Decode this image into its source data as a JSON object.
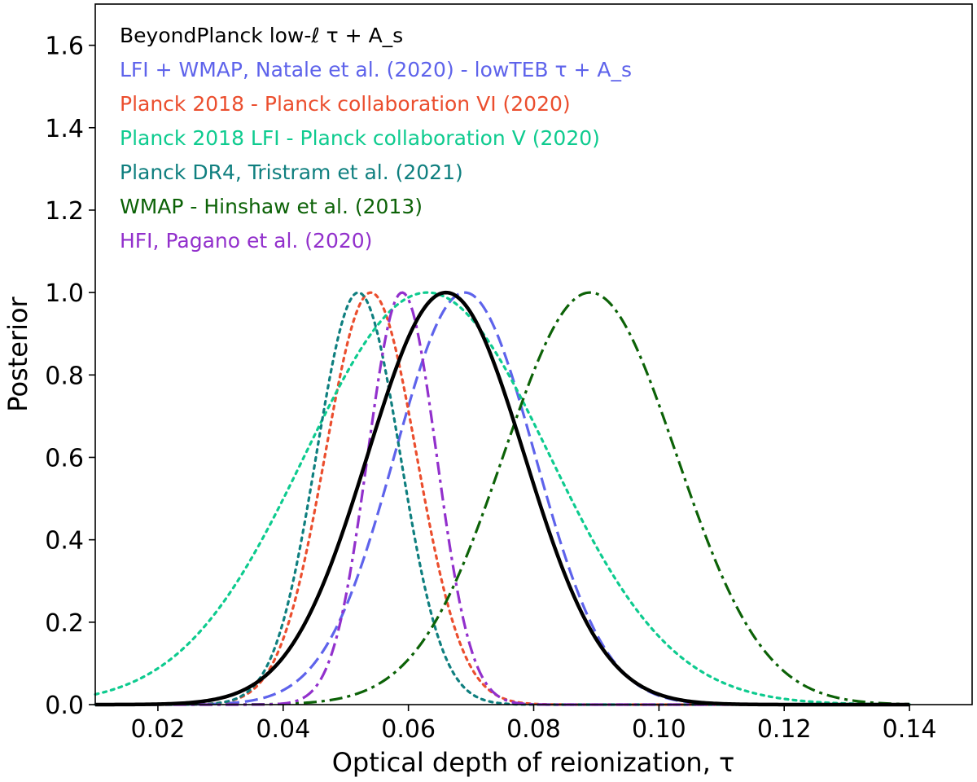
{
  "chart_data": {
    "type": "line",
    "xlabel": "Optical depth of reionization, τ",
    "ylabel": "Posterior",
    "xlim": [
      0.01,
      0.15
    ],
    "ylim": [
      0.0,
      1.7
    ],
    "xticks": [
      "0.02",
      "0.04",
      "0.06",
      "0.08",
      "0.10",
      "0.12",
      "0.14"
    ],
    "yticks": [
      "0.0",
      "0.2",
      "0.4",
      "0.6",
      "0.8",
      "1.0",
      "1.2",
      "1.4",
      "1.6"
    ],
    "grid": false,
    "legend_position": "top-left",
    "x_domain": [
      0.01,
      0.14
    ],
    "series": [
      {
        "name": "BeyondPlanck low-ℓ τ + A_s",
        "peak_tau": 0.066,
        "sigma_left": 0.0125,
        "sigma_right": 0.0125,
        "peak": 1.0,
        "color": "#000000",
        "style": "solid"
      },
      {
        "name": "LFI + WMAP, Natale et al. (2020) - lowTEB τ + A_s",
        "peak_tau": 0.069,
        "sigma_left": 0.0112,
        "sigma_right": 0.0112,
        "peak": 1.0,
        "color": "#5e63eb",
        "style": "dashed"
      },
      {
        "name": "Planck 2018 - Planck collaboration VI (2020)",
        "peak_tau": 0.054,
        "sigma_left": 0.0073,
        "sigma_right": 0.0073,
        "peak": 1.0,
        "color": "#eb4e2e",
        "style": "dotted"
      },
      {
        "name": "Planck 2018 LFI - Planck collaboration V (2020)",
        "peak_tau": 0.063,
        "sigma_left": 0.0195,
        "sigma_right": 0.0195,
        "peak": 1.0,
        "color": "#0ecb8f",
        "style": "dotted"
      },
      {
        "name": "Planck DR4, Tristram et al. (2021)",
        "peak_tau": 0.052,
        "sigma_left": 0.0067,
        "sigma_right": 0.0067,
        "peak": 1.0,
        "color": "#0f7f7f",
        "style": "dotted"
      },
      {
        "name": "WMAP - Hinshaw et al. (2013)",
        "peak_tau": 0.089,
        "sigma_left": 0.0138,
        "sigma_right": 0.0138,
        "peak": 1.0,
        "color": "#0c6207",
        "style": "dashdot"
      },
      {
        "name": "HFI, Pagano et al. (2020)",
        "peak_tau": 0.059,
        "sigma_left": 0.0055,
        "sigma_right": 0.0055,
        "peak": 1.0,
        "color": "#9230cc",
        "style": "dashdot"
      }
    ]
  }
}
